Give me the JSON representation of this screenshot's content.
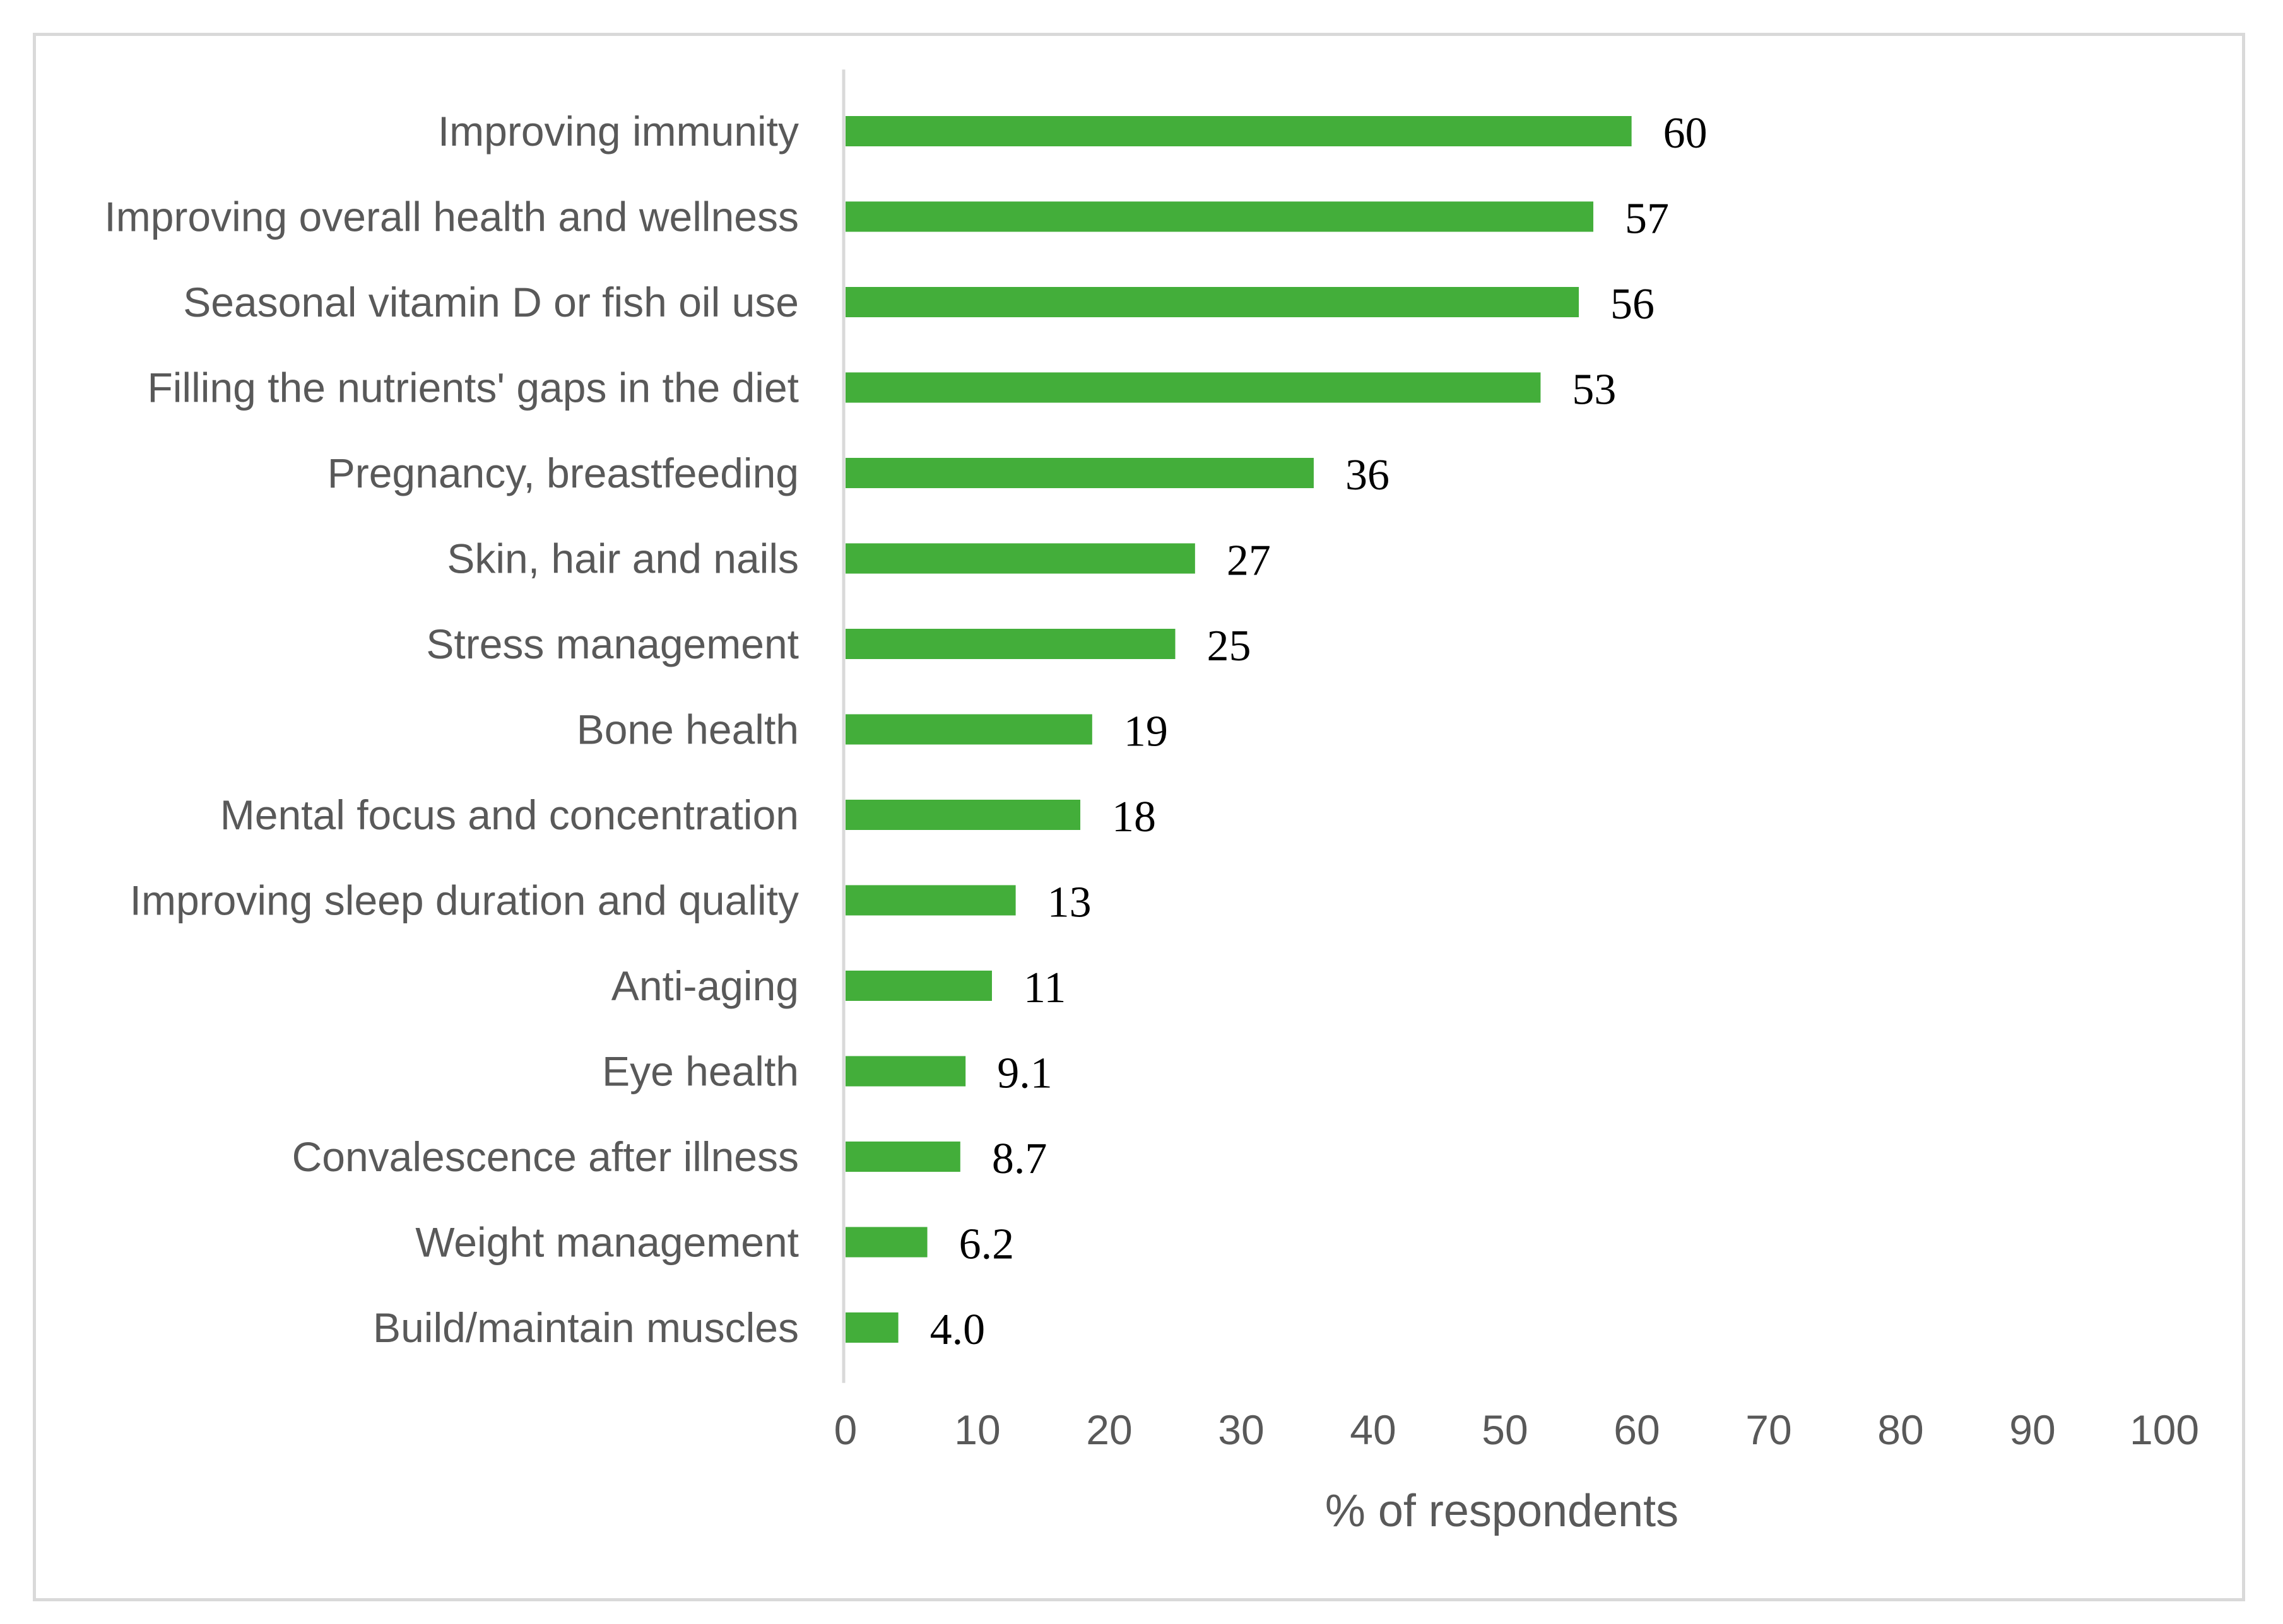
{
  "chart_data": {
    "type": "bar",
    "orientation": "horizontal",
    "title": "",
    "xlabel": "% of respondents",
    "ylabel": "",
    "xlim": [
      0,
      100
    ],
    "xticks": [
      0,
      10,
      20,
      30,
      40,
      50,
      60,
      70,
      80,
      90,
      100
    ],
    "grid": false,
    "legend": "none",
    "bar_color": "#43ae3a",
    "categories": [
      "Improving immunity",
      "Improving overall health and wellness",
      "Seasonal vitamin D or fish oil use",
      "Filling the nutrients' gaps in the diet",
      "Pregnancy, breastfeeding",
      "Skin, hair and nails",
      "Stress management",
      "Bone health",
      "Mental focus and concentration",
      "Improving sleep duration and quality",
      "Anti-aging",
      "Eye health",
      "Convalescence after illness",
      "Weight management",
      "Build/maintain muscles"
    ],
    "values": [
      59.6,
      56.7,
      55.6,
      52.7,
      35.5,
      26.5,
      25,
      18.7,
      17.8,
      12.9,
      11.1,
      9.1,
      8.7,
      6.2,
      4.0
    ],
    "value_labels": [
      "60",
      "57",
      "56",
      "53",
      "36",
      "27",
      "25",
      "19",
      "18",
      "13",
      "11",
      "9.1",
      "8.7",
      "6.2",
      "4.0"
    ]
  }
}
